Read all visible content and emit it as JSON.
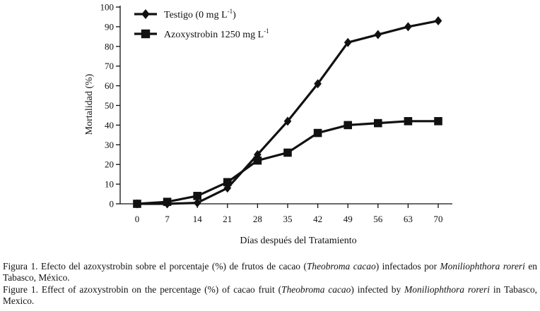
{
  "chart_data": {
    "type": "line",
    "xlabel": "Días después del Tratamiento",
    "ylabel": "Mortalidad (%)",
    "x": [
      0,
      7,
      14,
      21,
      28,
      35,
      42,
      49,
      56,
      63,
      70
    ],
    "xticks": [
      "0",
      "7",
      "14",
      "21",
      "28",
      "35",
      "42",
      "49",
      "56",
      "63",
      "70"
    ],
    "ylim": [
      0,
      100
    ],
    "yticks": [
      "0",
      "10",
      "20",
      "30",
      "40",
      "50",
      "60",
      "70",
      "80",
      "90",
      "100"
    ],
    "legend_position": "top-left",
    "series": [
      {
        "name": "Testigo (0 mg L",
        "name_sup": "-1",
        "name_tail": ")",
        "marker": "diamond",
        "values": [
          0,
          0,
          0.5,
          8,
          25,
          42,
          61,
          82,
          86,
          90,
          93
        ]
      },
      {
        "name": "Azoxystrobin 1250 mg L",
        "name_sup": "-1",
        "name_tail": "",
        "marker": "square",
        "values": [
          0,
          1,
          4,
          11,
          22,
          26,
          36,
          40,
          41,
          42,
          42
        ]
      }
    ]
  },
  "caption": {
    "es": {
      "prefix": "Figura 1. Efecto del azoxystrobin sobre el porcentaje (%) de frutos de cacao (",
      "species1": "Theobroma cacao",
      "mid": ") infectados por ",
      "species2": "Moniliophthora roreri",
      "suffix": " en Tabasco, México."
    },
    "en": {
      "prefix": "Figure 1. Effect of azoxystrobin on the percentage (%) of cacao fruit (",
      "species1": "Theobroma cacao",
      "mid": ") infected by ",
      "species2": "Moniliophthora roreri",
      "suffix": " in Tabasco, Mexico."
    }
  }
}
